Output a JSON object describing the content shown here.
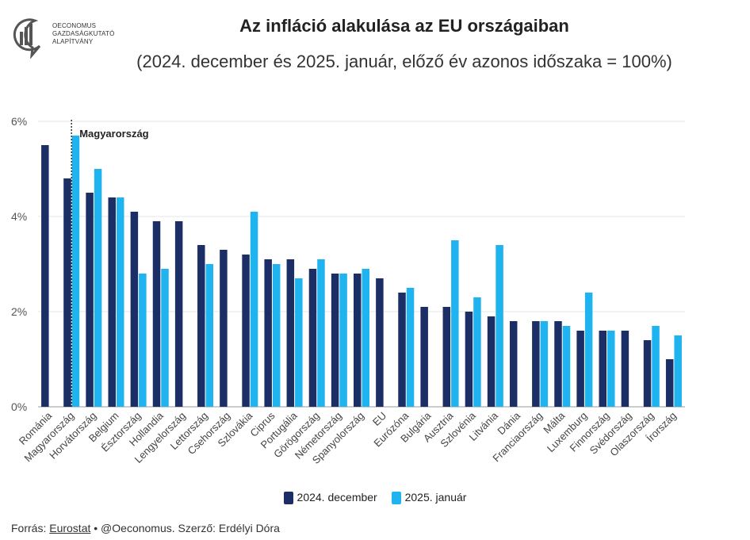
{
  "logo": {
    "lines": [
      "OECONOMUS",
      "GAZDASÁGKUTATÓ",
      "ALAPÍTVÁNY"
    ]
  },
  "title": "Az infláció alakulása az EU országaiban",
  "subtitle": "(2024. december és 2025. január, előző év azonos időszaka = 100%)",
  "footer": {
    "prefix": "Forrás: ",
    "source": "Eurostat",
    "rest": " • @Oeconomus. Szerző: Erdélyi Dóra"
  },
  "colors": {
    "dec": "#1b2f66",
    "jan": "#1fb4f0"
  },
  "chart_data": {
    "type": "bar",
    "categories": [
      "Románia",
      "Magyarország",
      "Horvátország",
      "Belgium",
      "Észtország",
      "Hollandia",
      "Lengyelország",
      "Lettország",
      "Csehország",
      "Szlovákia",
      "Ciprus",
      "Portugália",
      "Görögország",
      "Németország",
      "Spanyolország",
      "EU",
      "Eurózóna",
      "Bulgária",
      "Ausztria",
      "Szlovénia",
      "Litvánia",
      "Dánia",
      "Franciaország",
      "Málta",
      "Luxemburg",
      "Finnország",
      "Svédország",
      "Olaszország",
      "Írország"
    ],
    "series": [
      {
        "name": "2024. december",
        "values": [
          5.5,
          4.8,
          4.5,
          4.4,
          4.1,
          3.9,
          3.9,
          3.4,
          3.3,
          3.2,
          3.1,
          3.1,
          2.9,
          2.8,
          2.8,
          2.7,
          2.4,
          2.1,
          2.1,
          2.0,
          1.9,
          1.8,
          1.8,
          1.8,
          1.6,
          1.6,
          1.6,
          1.4,
          1.0
        ]
      },
      {
        "name": "2025. január",
        "values": [
          null,
          5.7,
          5.0,
          4.4,
          2.8,
          2.9,
          null,
          3.0,
          null,
          4.1,
          3.0,
          2.7,
          3.1,
          2.8,
          2.9,
          null,
          2.5,
          null,
          3.5,
          2.3,
          3.4,
          null,
          1.8,
          1.7,
          2.4,
          1.6,
          null,
          1.7,
          1.5
        ]
      }
    ],
    "ylim": [
      0,
      6
    ],
    "yticks": [
      0,
      2,
      4,
      6
    ],
    "ytick_labels": [
      "0%",
      "2%",
      "4%",
      "6%"
    ],
    "highlight": {
      "category": "Magyarország",
      "label": "Magyarország"
    },
    "grid": true,
    "legend": "bottom-center"
  }
}
